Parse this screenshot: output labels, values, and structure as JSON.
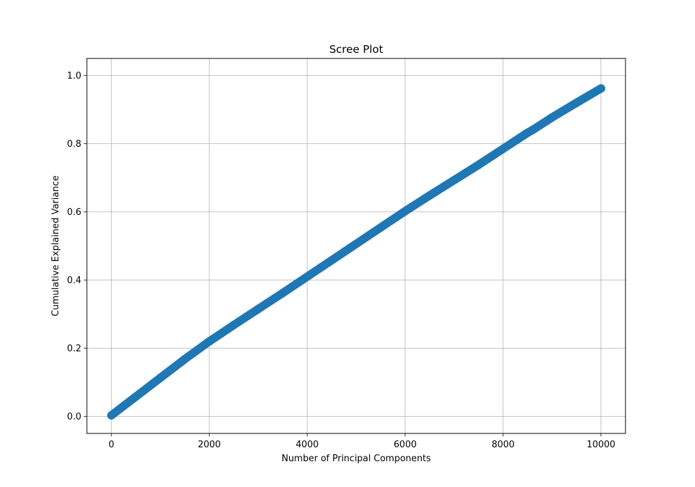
{
  "chart_data": {
    "type": "line",
    "title": "Scree Plot",
    "xlabel": "Number of Principal Components",
    "ylabel": "Cumulative Explained Variance",
    "xlim": [
      -500,
      10500
    ],
    "ylim": [
      -0.05,
      1.05
    ],
    "xticks": [
      0,
      2000,
      4000,
      6000,
      8000,
      10000
    ],
    "xtick_labels": [
      "0",
      "2000",
      "4000",
      "6000",
      "8000",
      "10000"
    ],
    "yticks": [
      0.0,
      0.2,
      0.4,
      0.6,
      0.8,
      1.0
    ],
    "ytick_labels": [
      "0.0",
      "0.2",
      "0.4",
      "0.6",
      "0.8",
      "1.0"
    ],
    "grid": true,
    "marker": "circle",
    "series": [
      {
        "color": "#1f77b4",
        "x": [
          1,
          500,
          1000,
          1500,
          2000,
          2500,
          3000,
          3500,
          4000,
          4500,
          5000,
          5500,
          6000,
          6500,
          7000,
          7500,
          8000,
          8500,
          8600,
          9000,
          9500,
          10000
        ],
        "y": [
          0.003,
          0.058,
          0.113,
          0.168,
          0.22,
          0.268,
          0.315,
          0.362,
          0.41,
          0.458,
          0.506,
          0.554,
          0.602,
          0.648,
          0.693,
          0.738,
          0.785,
          0.832,
          0.84,
          0.877,
          0.92,
          0.962
        ]
      }
    ]
  },
  "colors": {
    "series": "#1f77b4",
    "grid": "#b0b0b0",
    "axes": "#000000"
  }
}
